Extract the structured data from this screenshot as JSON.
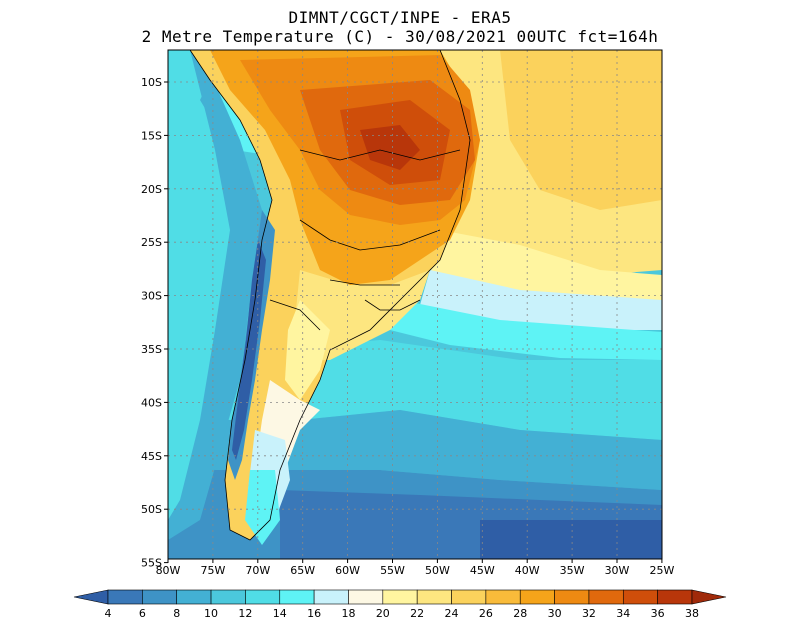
{
  "title": {
    "line1": "DIMNT/CGCT/INPE -  ERA5",
    "line2": "2 Metre Temperature (C) -  30/08/2021 00UTC fct=164h"
  },
  "map": {
    "lat_labels": [
      "10S",
      "15S",
      "20S",
      "25S",
      "30S",
      "35S",
      "40S",
      "45S",
      "50S",
      "55S"
    ],
    "lon_labels": [
      "80W",
      "75W",
      "70W",
      "65W",
      "60W",
      "55W",
      "50W",
      "45W",
      "40W",
      "35W",
      "30W",
      "25W"
    ]
  },
  "colorbar": {
    "labels": [
      "4",
      "6",
      "8",
      "10",
      "12",
      "14",
      "16",
      "18",
      "20",
      "22",
      "24",
      "26",
      "28",
      "30",
      "32",
      "34",
      "36",
      "38"
    ],
    "colors": [
      "#2f5ea6",
      "#3a78b8",
      "#3e93c6",
      "#43b0d4",
      "#4bc8dc",
      "#50dde6",
      "#5ef3f5",
      "#c9f2fb",
      "#fdf8e4",
      "#fff5a0",
      "#fde680",
      "#fbd25c",
      "#f9bb3a",
      "#f5a41a",
      "#ee8a12",
      "#e0690d",
      "#cf4e0a",
      "#b8360a",
      "#a02a0a"
    ]
  }
}
